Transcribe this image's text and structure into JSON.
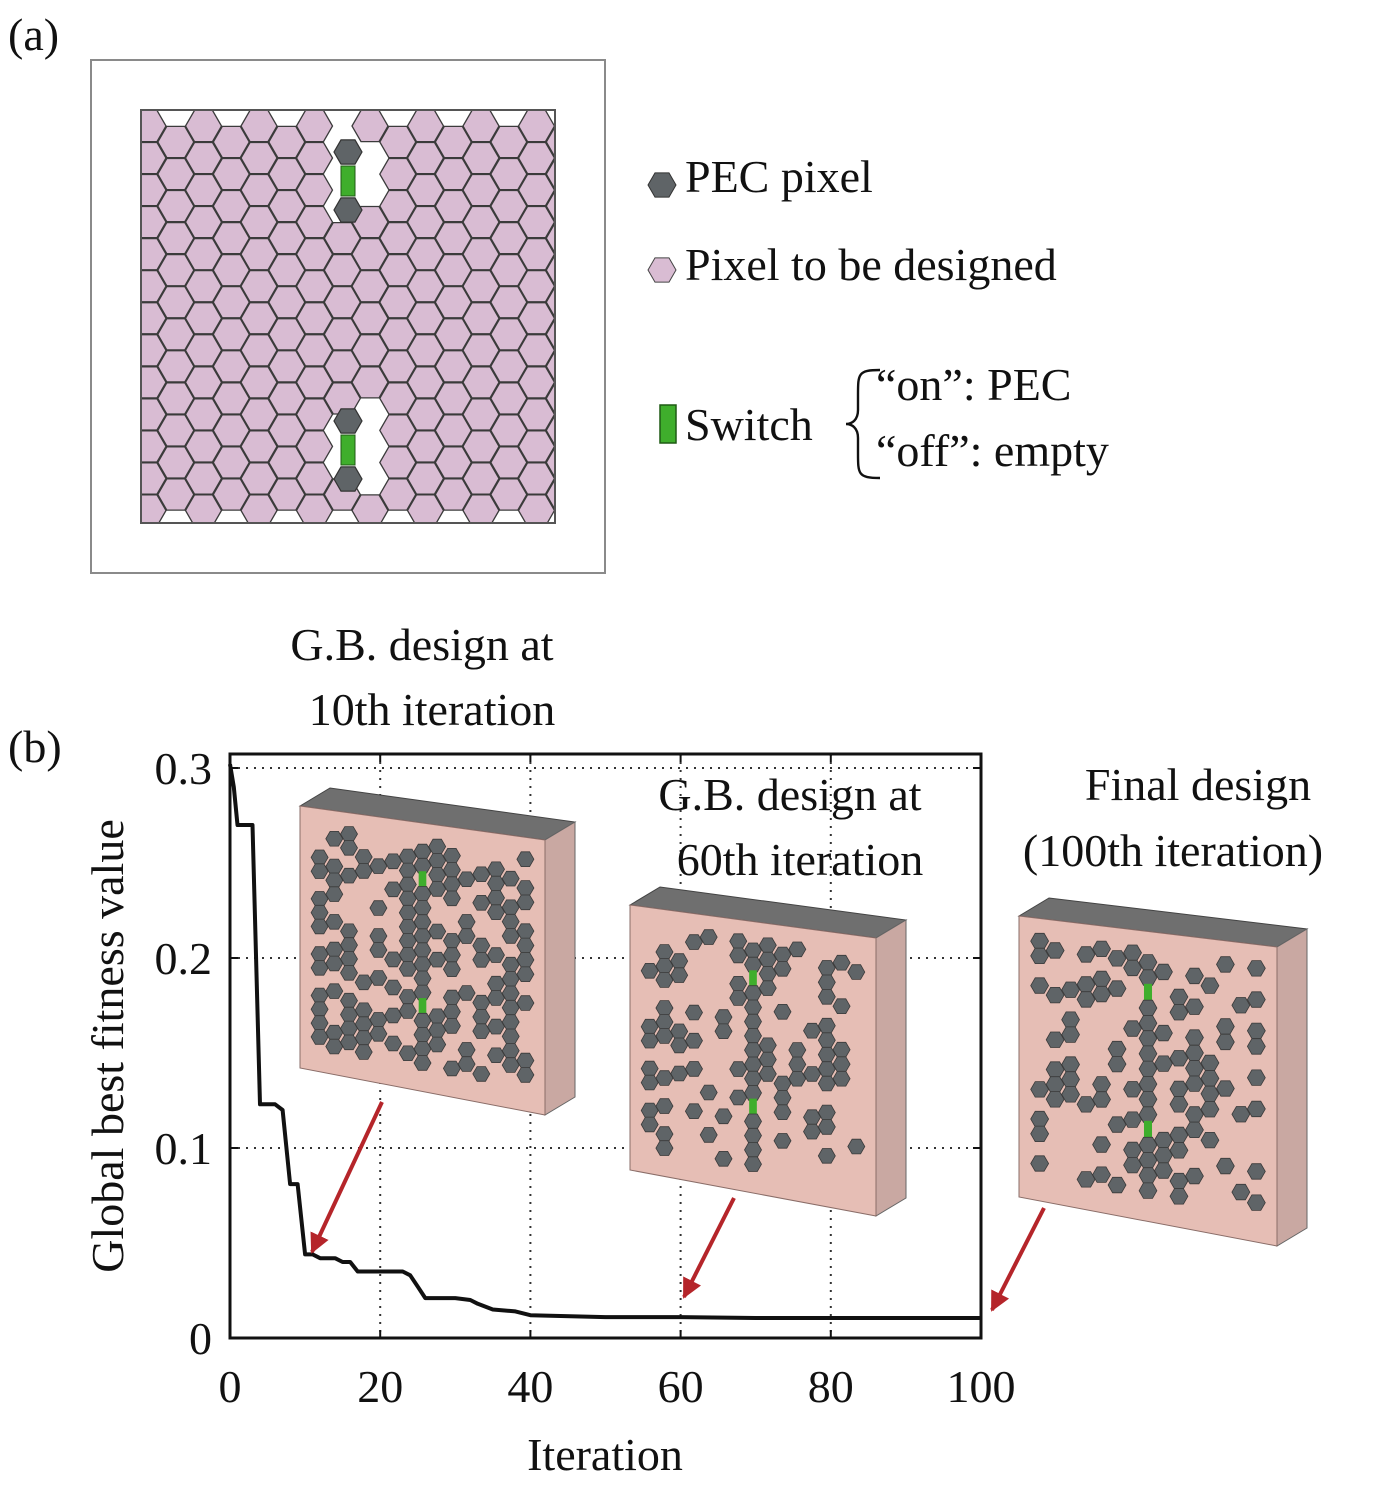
{
  "panel_a": {
    "label": "(a)",
    "legend": {
      "pec": "PEC pixel",
      "pixel": "Pixel to be designed",
      "switch": "Switch",
      "on": "“on”: PEC",
      "off": "“off”: empty"
    }
  },
  "panel_b": {
    "label": "(b)",
    "inset_10": [
      "G.B. design at",
      "10th iteration"
    ],
    "inset_60": [
      "G.B. design at",
      "60th iteration"
    ],
    "inset_final": [
      "Final design",
      "(100th iteration)"
    ]
  },
  "colors": {
    "pixel": "#d9bcd3",
    "pec": "#5f6467",
    "switch": "#3fae2c",
    "slab_face": "#e6beb5",
    "slab_top": "#6f6f6f",
    "slab_side": "#c9a8a2",
    "arrow": "#b5252a",
    "curve": "#111111"
  },
  "chart_data": {
    "type": "line",
    "xlabel": "Iteration",
    "ylabel": "Global best fitness value",
    "xlim": [
      0,
      100
    ],
    "ylim": [
      0,
      0.3
    ],
    "xticks": [
      "0",
      "20",
      "40",
      "60",
      "80",
      "100"
    ],
    "yticks": [
      "0",
      "0.1",
      "0.2",
      "0.3"
    ],
    "grid": "dotted",
    "series": [
      {
        "x": [
          0,
          0.5,
          1,
          2,
          3,
          4,
          5,
          6,
          7,
          8,
          9,
          10,
          11,
          12,
          14,
          15,
          16,
          17,
          20,
          23,
          24,
          25,
          26,
          28,
          30,
          32,
          33,
          35,
          38,
          40,
          50,
          60,
          70,
          80,
          90,
          100
        ],
        "y": [
          0.302,
          0.29,
          0.27,
          0.27,
          0.27,
          0.123,
          0.123,
          0.123,
          0.12,
          0.081,
          0.081,
          0.044,
          0.044,
          0.042,
          0.042,
          0.04,
          0.04,
          0.035,
          0.035,
          0.035,
          0.033,
          0.027,
          0.021,
          0.021,
          0.021,
          0.02,
          0.018,
          0.015,
          0.014,
          0.012,
          0.011,
          0.011,
          0.0105,
          0.0105,
          0.0105,
          0.0105
        ]
      }
    ],
    "annotations": [
      {
        "text": "G.B. design at 10th iteration",
        "x": 10
      },
      {
        "text": "G.B. design at 60th iteration",
        "x": 60
      },
      {
        "text": "Final design (100th iteration)",
        "x": 100
      }
    ]
  }
}
